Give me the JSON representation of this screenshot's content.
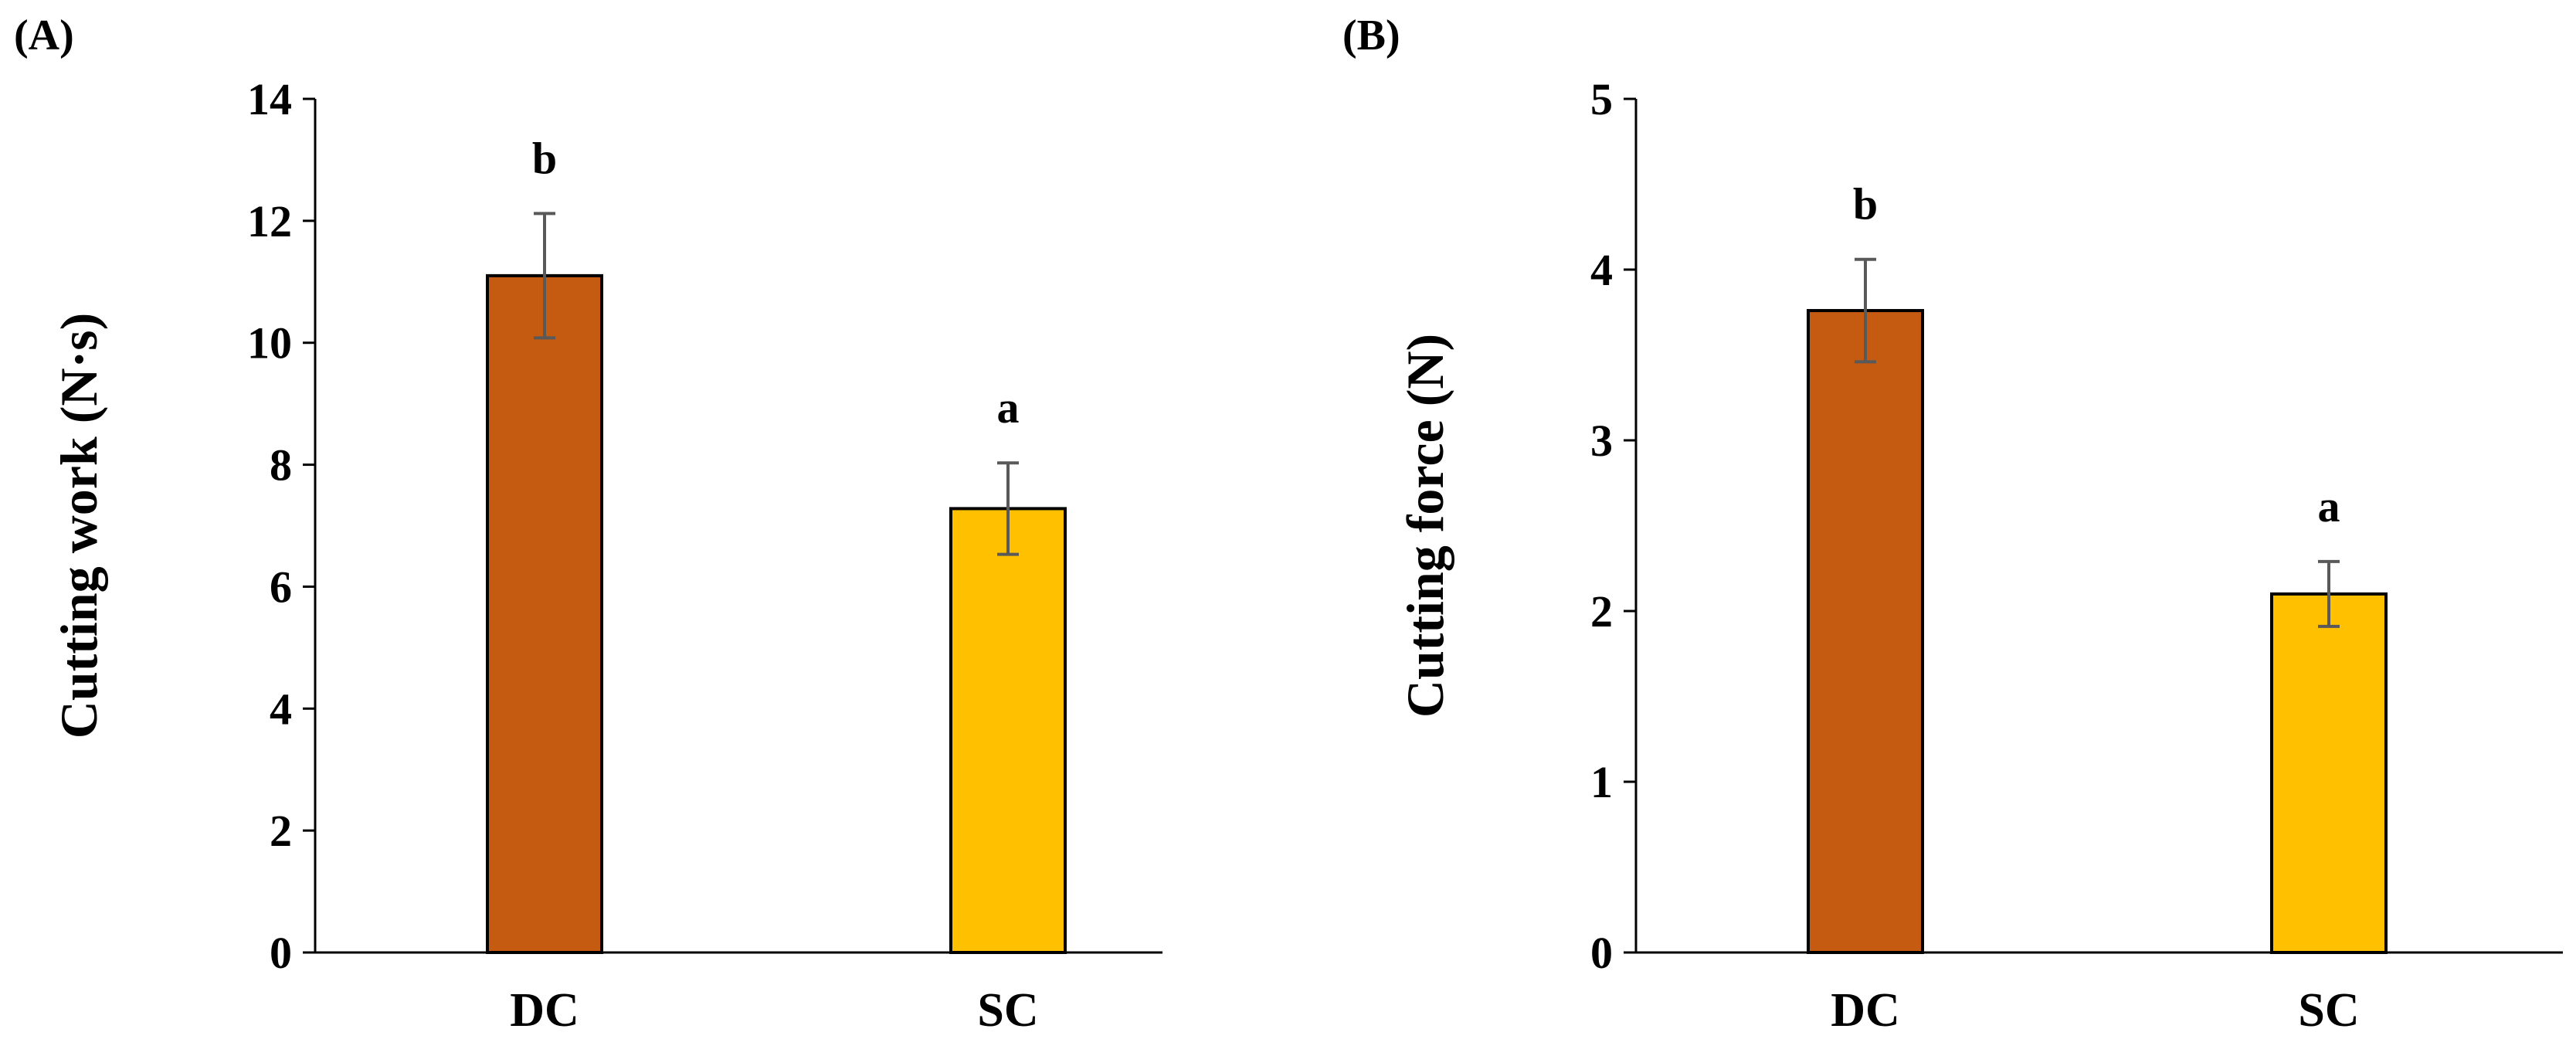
{
  "chart_data": [
    {
      "panel": "(A)",
      "type": "bar",
      "categories": [
        "DC",
        "SC"
      ],
      "values": [
        11.1,
        7.28
      ],
      "errors": [
        1.02,
        0.75
      ],
      "significance": [
        "b",
        "a"
      ],
      "colors": [
        "#c55a11",
        "#ffc000"
      ],
      "ylabel": "Cutting work (N·s)",
      "xlabel": "",
      "ylim": [
        0,
        14
      ],
      "yticks": [
        0,
        2,
        4,
        6,
        8,
        10,
        12,
        14
      ],
      "grid": false,
      "legend": "none"
    },
    {
      "panel": "(B)",
      "type": "bar",
      "categories": [
        "DC",
        "SC"
      ],
      "values": [
        3.76,
        2.1
      ],
      "errors": [
        0.3,
        0.19
      ],
      "significance": [
        "b",
        "a"
      ],
      "colors": [
        "#c55a11",
        "#ffc000"
      ],
      "ylabel": "Cutting force (N)",
      "xlabel": "",
      "ylim": [
        0,
        5
      ],
      "yticks": [
        0,
        1,
        2,
        3,
        4,
        5
      ],
      "grid": false,
      "legend": "none"
    }
  ]
}
